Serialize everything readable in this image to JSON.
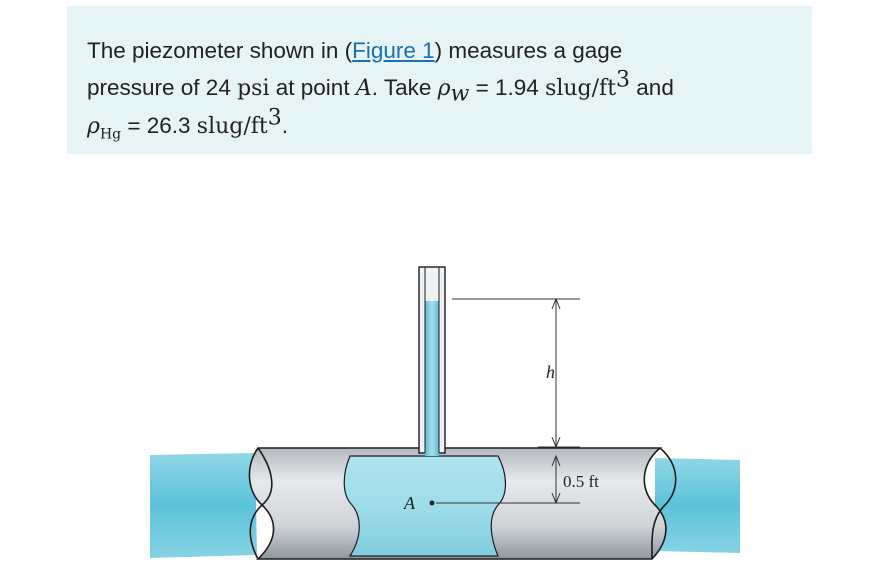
{
  "problem": {
    "intro": "The piezometer shown in (",
    "figure_link": "Figure 1",
    "intro_end": ") measures a gage",
    "line2_a": "pressure of 24 ",
    "psi": "psi",
    "line2_b": " at point ",
    "point": "A",
    "line2_c": ". Take ",
    "rho": "ρ",
    "w_sub": "w",
    "line2_d": " = 1.94 ",
    "unit": "slug/ft",
    "cube": "3",
    "line2_e": " and",
    "hg_sub": "Hg",
    "line3_a": " = 26.3 ",
    "line3_end": "."
  },
  "figure": {
    "h_label": "h",
    "dim_label": "0.5 ft",
    "point_label": "A"
  }
}
